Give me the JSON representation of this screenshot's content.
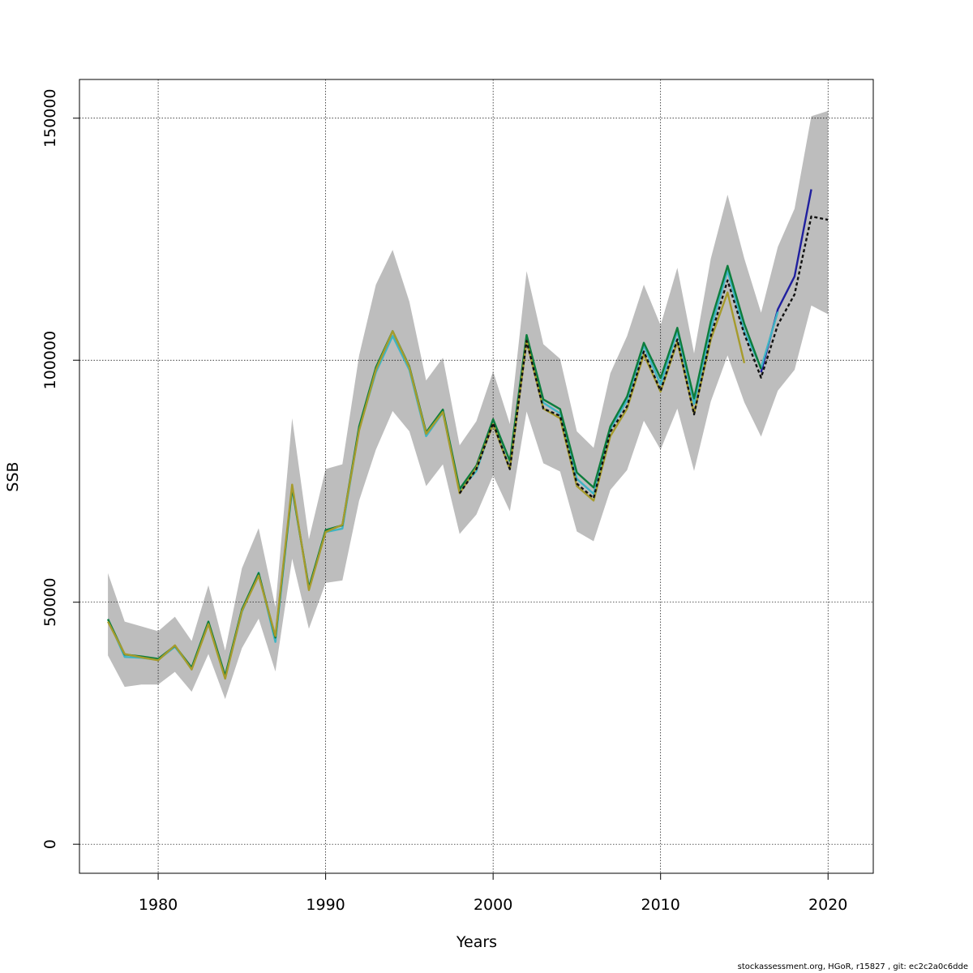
{
  "chart_data": {
    "type": "line",
    "xlabel": "Years",
    "ylabel": "SSB",
    "xlim": [
      1975.3,
      2022.7
    ],
    "ylim": [
      -6000,
      158000
    ],
    "x_ticks": [
      1980,
      1990,
      2000,
      2010,
      2020
    ],
    "y_ticks": [
      0,
      50000,
      100000,
      150000
    ],
    "grid": true,
    "band": {
      "x": [
        1977,
        1978,
        1979,
        1980,
        1981,
        1982,
        1983,
        1984,
        1985,
        1986,
        1987,
        1988,
        1989,
        1990,
        1991,
        1992,
        1993,
        1994,
        1995,
        1996,
        1997,
        1998,
        1999,
        2000,
        2001,
        2002,
        2003,
        2004,
        2005,
        2006,
        2007,
        2008,
        2009,
        2010,
        2011,
        2012,
        2013,
        2014,
        2015,
        2016,
        2017,
        2018,
        2019,
        2020
      ],
      "lower": [
        39000,
        32500,
        33000,
        33000,
        35600,
        31500,
        39300,
        30000,
        40500,
        46600,
        35700,
        59000,
        44500,
        54000,
        54500,
        71000,
        81500,
        89500,
        85300,
        74000,
        78500,
        64100,
        68100,
        76200,
        68800,
        89400,
        78700,
        77000,
        64600,
        62600,
        73200,
        77300,
        87500,
        81500,
        90000,
        77100,
        91500,
        101000,
        91300,
        84200,
        93700,
        98000,
        111300,
        109500
      ],
      "upper": [
        56000,
        46000,
        45000,
        44000,
        47000,
        42000,
        53500,
        40000,
        57000,
        65300,
        49000,
        88000,
        63000,
        77500,
        78500,
        101000,
        115600,
        122800,
        112100,
        95800,
        100500,
        82400,
        87400,
        97700,
        86800,
        118400,
        103300,
        100300,
        85300,
        81900,
        97300,
        105000,
        115600,
        107200,
        119100,
        101400,
        121000,
        134200,
        121000,
        109800,
        123400,
        131300,
        150400,
        151500
      ]
    },
    "series": [
      {
        "color": "#1f1f9f",
        "x": [
          2016,
          2017,
          2018,
          2019
        ],
        "values": [
          97500,
          110500,
          117300,
          135300
        ]
      },
      {
        "color": "#3fb4c4",
        "x": [
          1977,
          1978,
          1979,
          1980,
          1981,
          1982,
          1983,
          1984,
          1985,
          1986,
          1987,
          1988,
          1989,
          1990,
          1991,
          1992,
          1993,
          1994,
          1995,
          1996,
          1997,
          1998,
          1999,
          2000,
          2001,
          2002,
          2003,
          2004,
          2005,
          2006,
          2007,
          2008,
          2009,
          2010,
          2011,
          2012,
          2013,
          2014,
          2015,
          2016,
          2017
        ],
        "values": [
          46500,
          38700,
          38500,
          38100,
          40800,
          36300,
          45800,
          34500,
          48000,
          56100,
          41800,
          73500,
          53000,
          64500,
          65200,
          85800,
          97500,
          105000,
          98000,
          84300,
          89200,
          73000,
          77100,
          87300,
          77500,
          104500,
          91200,
          89000,
          75500,
          72400,
          85800,
          91700,
          103000,
          95000,
          106000,
          91000,
          106500,
          118500,
          106000,
          98400,
          110000
        ]
      },
      {
        "color": "#0c7d3c",
        "x": [
          1977,
          1978,
          1979,
          1980,
          1981,
          1982,
          1983,
          1984,
          1985,
          1986,
          1987,
          1988,
          1989,
          1990,
          1991,
          1992,
          1993,
          1994,
          1995,
          1996,
          1997,
          1998,
          1999,
          2000,
          2001,
          2002,
          2003,
          2004,
          2005,
          2006,
          2007,
          2008,
          2009,
          2010,
          2011,
          2012,
          2013,
          2014,
          2015,
          2016
        ],
        "values": [
          46500,
          39200,
          38800,
          38300,
          41000,
          36500,
          46000,
          34800,
          48500,
          56000,
          42700,
          73700,
          53000,
          64900,
          65900,
          86300,
          98500,
          106000,
          98700,
          85100,
          89800,
          73400,
          78200,
          87800,
          79200,
          105200,
          91900,
          89900,
          76800,
          73700,
          86300,
          92500,
          103600,
          96300,
          106700,
          92100,
          108000,
          119500,
          107500,
          98200
        ]
      },
      {
        "color": "#a69b2c",
        "x": [
          1977,
          1978,
          1979,
          1980,
          1981,
          1982,
          1983,
          1984,
          1985,
          1986,
          1987,
          1988,
          1989,
          1990,
          1991,
          1992,
          1993,
          1994,
          1995,
          1996,
          1997,
          1998,
          1999,
          2000,
          2001,
          2002,
          2003,
          2004,
          2005,
          2006,
          2007,
          2008,
          2009,
          2010,
          2011,
          2012,
          2013,
          2014,
          2015
        ],
        "values": [
          46000,
          39300,
          38600,
          38000,
          41100,
          36100,
          45500,
          34200,
          48200,
          55500,
          43000,
          74300,
          52500,
          64500,
          66000,
          85500,
          98000,
          106000,
          98500,
          84800,
          89300,
          72500,
          77800,
          86800,
          77500,
          104000,
          90000,
          88000,
          74000,
          71000,
          84300,
          90000,
          101200,
          93500,
          103800,
          89000,
          104300,
          114000,
          99400
        ]
      },
      {
        "color": "#111111",
        "dashed": true,
        "x": [
          1998,
          1999,
          2000,
          2001,
          2002,
          2003,
          2004,
          2005,
          2006,
          2007,
          2008,
          2009,
          2010,
          2011,
          2012,
          2013,
          2014,
          2015,
          2016,
          2017,
          2018,
          2019,
          2020
        ],
        "values": [
          72500,
          77500,
          87000,
          77500,
          104000,
          90000,
          88500,
          74500,
          71500,
          85200,
          90500,
          101800,
          93700,
          104300,
          88800,
          105000,
          116500,
          105400,
          96400,
          107300,
          113600,
          129700,
          129000
        ]
      }
    ]
  },
  "footer": "stockassessment.org, HGoR, r15827 , git: ec2c2a0c6dde"
}
